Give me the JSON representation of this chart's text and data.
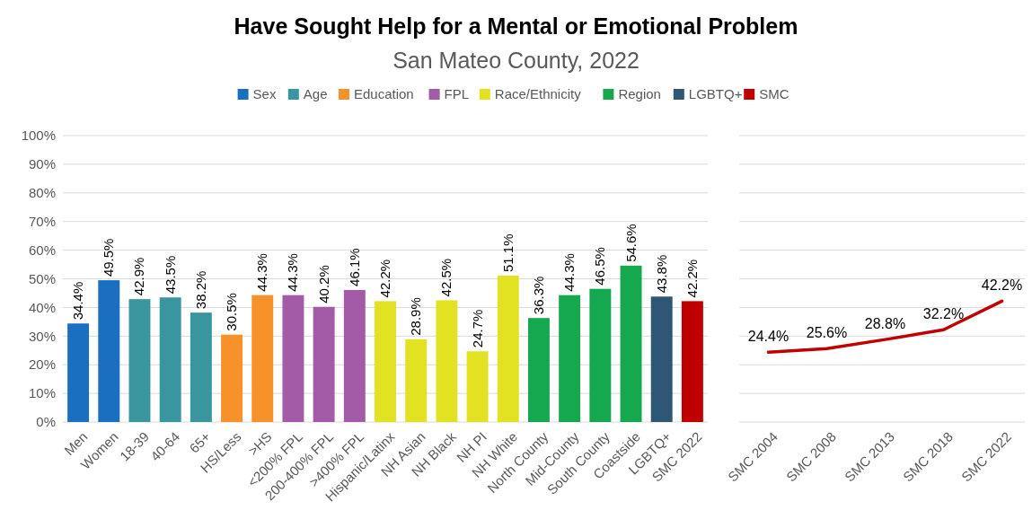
{
  "chart_data": [
    {
      "type": "bar",
      "title": "Have Sought Help for a Mental or Emotional Problem",
      "subtitle": "San Mateo County, 2022",
      "legend": "top",
      "grid": "y",
      "categories": [
        "Men",
        "Women",
        "18-39",
        "40-64",
        "65+",
        "HS/Less",
        ">HS",
        "<200% FPL",
        "200-400% FPL",
        ">400% FPL",
        "Hispanic/Latinx",
        "NH Asian",
        "NH Black",
        "NH PI",
        "NH White",
        "North County",
        "Mid-County",
        "South County",
        "Coastside",
        "LGBTQ+",
        "SMC 2022"
      ],
      "ylim": [
        0,
        100
      ],
      "yticks": [
        {
          "value": 0,
          "label": "0%"
        },
        {
          "value": 10,
          "label": "10%"
        },
        {
          "value": 20,
          "label": "20%"
        },
        {
          "value": 30,
          "label": "30%"
        },
        {
          "value": 40,
          "label": "40%"
        },
        {
          "value": 50,
          "label": "50%"
        },
        {
          "value": 60,
          "label": "60%"
        },
        {
          "value": 70,
          "label": "70%"
        },
        {
          "value": 80,
          "label": "80%"
        },
        {
          "value": 90,
          "label": "90%"
        },
        {
          "value": 100,
          "label": "100%"
        }
      ],
      "series": [
        {
          "name": "Sex",
          "color": "#1a6fc0",
          "values": [
            34.4,
            49.5,
            null,
            null,
            null,
            null,
            null,
            null,
            null,
            null,
            null,
            null,
            null,
            null,
            null,
            null,
            null,
            null,
            null,
            null,
            null
          ],
          "value_labels": [
            "34.4%",
            "49.5%",
            null,
            null,
            null,
            null,
            null,
            null,
            null,
            null,
            null,
            null,
            null,
            null,
            null,
            null,
            null,
            null,
            null,
            null,
            null
          ]
        },
        {
          "name": "Age",
          "color": "#3a969e",
          "values": [
            null,
            null,
            42.9,
            43.5,
            38.2,
            null,
            null,
            null,
            null,
            null,
            null,
            null,
            null,
            null,
            null,
            null,
            null,
            null,
            null,
            null,
            null
          ],
          "value_labels": [
            null,
            null,
            "42.9%",
            "43.5%",
            "38.2%",
            null,
            null,
            null,
            null,
            null,
            null,
            null,
            null,
            null,
            null,
            null,
            null,
            null,
            null,
            null,
            null
          ]
        },
        {
          "name": "Education",
          "color": "#f7922a",
          "values": [
            null,
            null,
            null,
            null,
            null,
            30.5,
            44.3,
            null,
            null,
            null,
            null,
            null,
            null,
            null,
            null,
            null,
            null,
            null,
            null,
            null,
            null
          ],
          "value_labels": [
            null,
            null,
            null,
            null,
            null,
            "30.5%",
            "44.3%",
            null,
            null,
            null,
            null,
            null,
            null,
            null,
            null,
            null,
            null,
            null,
            null,
            null,
            null
          ]
        },
        {
          "name": "FPL",
          "color": "#a35ba7",
          "values": [
            null,
            null,
            null,
            null,
            null,
            null,
            null,
            44.3,
            40.2,
            46.1,
            null,
            null,
            null,
            null,
            null,
            null,
            null,
            null,
            null,
            null,
            null
          ],
          "value_labels": [
            null,
            null,
            null,
            null,
            null,
            null,
            null,
            "44.3%",
            "40.2%",
            "46.1%",
            null,
            null,
            null,
            null,
            null,
            null,
            null,
            null,
            null,
            null,
            null
          ]
        },
        {
          "name": "Race/Ethnicity",
          "color": "#e2e222",
          "values": [
            null,
            null,
            null,
            null,
            null,
            null,
            null,
            null,
            null,
            null,
            42.2,
            28.9,
            42.5,
            24.7,
            51.1,
            null,
            null,
            null,
            null,
            null,
            null
          ],
          "value_labels": [
            null,
            null,
            null,
            null,
            null,
            null,
            null,
            null,
            null,
            null,
            "42.2%",
            "28.9%",
            "42.5%",
            "24.7%",
            "51.1%",
            null,
            null,
            null,
            null,
            null,
            null
          ]
        },
        {
          "name": "Region",
          "color": "#16a84f",
          "values": [
            null,
            null,
            null,
            null,
            null,
            null,
            null,
            null,
            null,
            null,
            null,
            null,
            null,
            null,
            null,
            36.3,
            44.3,
            46.5,
            54.6,
            null,
            null
          ],
          "value_labels": [
            null,
            null,
            null,
            null,
            null,
            null,
            null,
            null,
            null,
            null,
            null,
            null,
            null,
            null,
            null,
            "36.3%",
            "44.3%",
            "46.5%",
            "54.6%",
            null,
            null
          ]
        },
        {
          "name": "LGBTQ+",
          "color": "#2e5675",
          "values": [
            null,
            null,
            null,
            null,
            null,
            null,
            null,
            null,
            null,
            null,
            null,
            null,
            null,
            null,
            null,
            null,
            null,
            null,
            null,
            43.8,
            null
          ],
          "value_labels": [
            null,
            null,
            null,
            null,
            null,
            null,
            null,
            null,
            null,
            null,
            null,
            null,
            null,
            null,
            null,
            null,
            null,
            null,
            null,
            "43.8%",
            null
          ]
        },
        {
          "name": "SMC",
          "color": "#c00000",
          "values": [
            null,
            null,
            null,
            null,
            null,
            null,
            null,
            null,
            null,
            null,
            null,
            null,
            null,
            null,
            null,
            null,
            null,
            null,
            null,
            null,
            42.2
          ],
          "value_labels": [
            null,
            null,
            null,
            null,
            null,
            null,
            null,
            null,
            null,
            null,
            null,
            null,
            null,
            null,
            null,
            null,
            null,
            null,
            null,
            null,
            "42.2%"
          ]
        }
      ]
    },
    {
      "type": "line",
      "categories": [
        "SMC 2004",
        "SMC 2008",
        "SMC 2013",
        "SMC 2018",
        "SMC 2022"
      ],
      "ylim": [
        0,
        100
      ],
      "yticks": [
        0,
        10,
        20,
        30,
        40,
        50,
        60,
        70,
        80,
        90,
        100
      ],
      "tick_labels": "x",
      "grid": "y",
      "marker": "none",
      "line_style": "solid",
      "series": [
        {
          "color": "#c00000",
          "values": [
            24.4,
            25.6,
            28.8,
            32.2,
            42.2
          ],
          "value_labels": [
            "24.4%",
            "25.6%",
            "28.8%",
            "32.2%",
            "42.2%"
          ]
        }
      ]
    }
  ]
}
